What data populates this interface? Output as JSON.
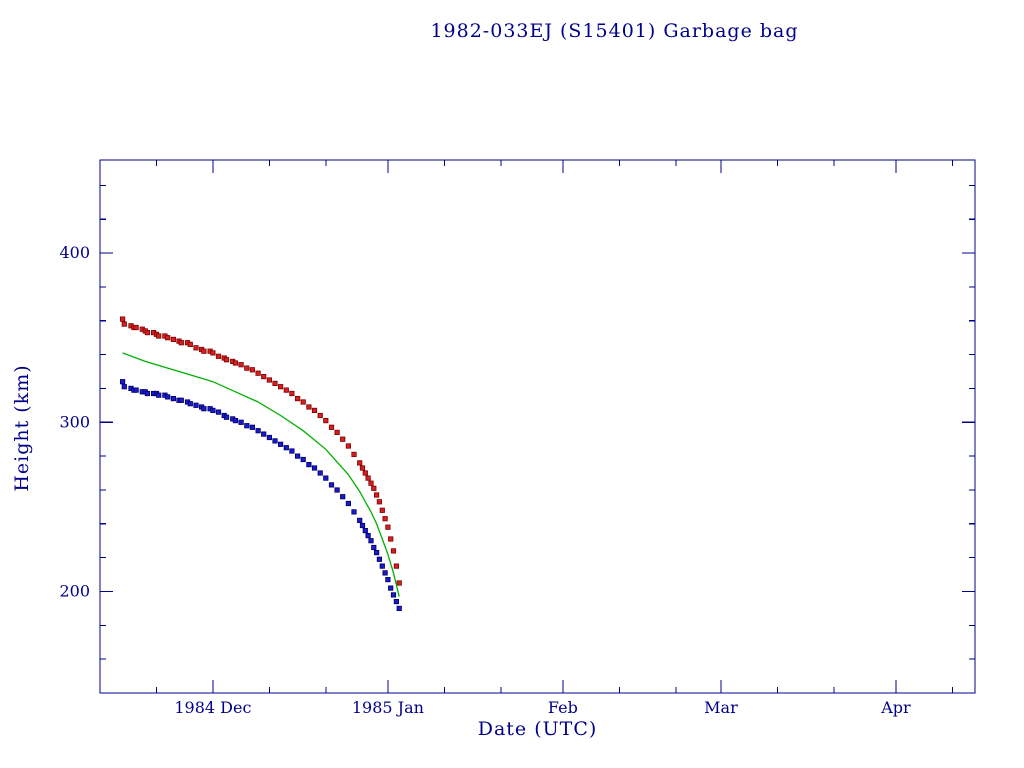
{
  "page": {
    "background_color": "#ffffff",
    "accent_color": "#00008b"
  },
  "chart_data": {
    "type": "scatter",
    "title": "1982-033EJ (S15401) Garbage bag",
    "xlabel": "Date (UTC)",
    "ylabel": "Height (km)",
    "x_unit": "days since 1984-11-15",
    "xlim": [
      -4,
      151
    ],
    "ylim": [
      140,
      455
    ],
    "grid": false,
    "legend": "none",
    "frame_color": "#00008b",
    "y_ticks": [
      {
        "value": 200,
        "label": "200"
      },
      {
        "value": 300,
        "label": "300"
      },
      {
        "value": 400,
        "label": "400"
      }
    ],
    "y_minor_values": [
      160,
      180,
      220,
      240,
      260,
      280,
      320,
      340,
      360,
      380,
      420,
      440
    ],
    "x_ticks": [
      {
        "day": 16,
        "label": "1984 Dec"
      },
      {
        "day": 47,
        "label": "1985 Jan"
      },
      {
        "day": 78,
        "label": "Feb"
      },
      {
        "day": 106,
        "label": "Mar"
      },
      {
        "day": 137,
        "label": "Apr"
      }
    ],
    "x_minor_days": [
      6,
      26,
      36,
      57,
      67,
      88,
      98,
      116,
      126,
      147
    ],
    "series": [
      {
        "name": "red-squares-upper",
        "type": "scatter",
        "marker": "square",
        "color": "#d42020",
        "edge": "#7f0000",
        "points": [
          [
            0,
            361
          ],
          [
            0.3,
            358
          ],
          [
            1.5,
            357
          ],
          [
            2,
            356
          ],
          [
            2.4,
            356
          ],
          [
            3.5,
            355
          ],
          [
            4,
            354
          ],
          [
            4.4,
            353
          ],
          [
            5.5,
            353
          ],
          [
            6,
            352
          ],
          [
            6.4,
            351
          ],
          [
            7.5,
            351
          ],
          [
            8,
            350
          ],
          [
            9,
            349
          ],
          [
            10,
            348
          ],
          [
            10.4,
            347
          ],
          [
            11.5,
            347
          ],
          [
            12,
            346
          ],
          [
            13,
            344
          ],
          [
            14,
            343
          ],
          [
            14.4,
            342
          ],
          [
            15.5,
            342
          ],
          [
            16,
            341
          ],
          [
            17,
            339
          ],
          [
            18,
            338
          ],
          [
            18.4,
            337
          ],
          [
            19.5,
            336
          ],
          [
            20,
            335
          ],
          [
            21,
            334
          ],
          [
            22,
            332
          ],
          [
            23,
            331
          ],
          [
            24,
            329
          ],
          [
            25,
            327
          ],
          [
            26,
            325
          ],
          [
            27,
            323
          ],
          [
            28,
            321
          ],
          [
            29,
            319
          ],
          [
            30,
            317
          ],
          [
            31,
            314
          ],
          [
            32,
            312
          ],
          [
            33,
            309
          ],
          [
            34,
            307
          ],
          [
            35,
            304
          ],
          [
            36,
            301
          ],
          [
            37,
            297
          ],
          [
            38,
            294
          ],
          [
            39,
            290
          ],
          [
            40,
            286
          ],
          [
            41,
            281
          ],
          [
            42,
            276
          ],
          [
            42.5,
            273
          ],
          [
            43,
            270
          ],
          [
            43.5,
            267
          ],
          [
            44,
            264
          ],
          [
            44.5,
            261
          ],
          [
            45,
            257
          ],
          [
            45.5,
            253
          ],
          [
            46,
            248
          ],
          [
            46.5,
            243
          ],
          [
            47,
            238
          ],
          [
            47.5,
            231
          ],
          [
            48,
            224
          ],
          [
            48.5,
            215
          ],
          [
            49,
            205
          ]
        ]
      },
      {
        "name": "blue-squares-lower",
        "type": "scatter",
        "marker": "square",
        "color": "#1a1acc",
        "edge": "#000066",
        "points": [
          [
            0,
            324
          ],
          [
            0.3,
            321
          ],
          [
            1.5,
            320
          ],
          [
            2,
            319
          ],
          [
            2.4,
            319
          ],
          [
            3.5,
            318
          ],
          [
            4,
            318
          ],
          [
            4.4,
            317
          ],
          [
            5.5,
            317
          ],
          [
            6,
            317
          ],
          [
            6.4,
            316
          ],
          [
            7.5,
            316
          ],
          [
            8,
            315
          ],
          [
            9,
            314
          ],
          [
            10,
            313
          ],
          [
            10.4,
            313
          ],
          [
            11.5,
            312
          ],
          [
            12,
            311
          ],
          [
            13,
            310
          ],
          [
            14,
            309
          ],
          [
            14.4,
            308
          ],
          [
            15.5,
            308
          ],
          [
            16,
            307
          ],
          [
            17,
            306
          ],
          [
            18,
            304
          ],
          [
            18.4,
            303
          ],
          [
            19.5,
            302
          ],
          [
            20,
            301
          ],
          [
            21,
            300
          ],
          [
            22,
            298
          ],
          [
            23,
            297
          ],
          [
            24,
            295
          ],
          [
            25,
            293
          ],
          [
            26,
            291
          ],
          [
            27,
            289
          ],
          [
            28,
            287
          ],
          [
            29,
            285
          ],
          [
            30,
            283
          ],
          [
            31,
            280
          ],
          [
            32,
            278
          ],
          [
            33,
            275
          ],
          [
            34,
            273
          ],
          [
            35,
            270
          ],
          [
            36,
            267
          ],
          [
            37,
            263
          ],
          [
            38,
            260
          ],
          [
            39,
            256
          ],
          [
            40,
            252
          ],
          [
            41,
            247
          ],
          [
            42,
            242
          ],
          [
            42.5,
            239
          ],
          [
            43,
            236
          ],
          [
            43.5,
            233
          ],
          [
            44,
            230
          ],
          [
            44.5,
            226
          ],
          [
            45,
            223
          ],
          [
            45.5,
            219
          ],
          [
            46,
            215
          ],
          [
            46.5,
            211
          ],
          [
            47,
            207
          ],
          [
            47.5,
            202
          ],
          [
            48,
            198
          ],
          [
            48.5,
            194
          ],
          [
            49,
            190
          ]
        ]
      },
      {
        "name": "green-line-middle",
        "type": "line",
        "color": "#00b000",
        "points": [
          [
            0,
            341
          ],
          [
            4,
            336
          ],
          [
            8,
            332
          ],
          [
            12,
            328
          ],
          [
            16,
            324
          ],
          [
            20,
            318
          ],
          [
            24,
            312
          ],
          [
            28,
            304
          ],
          [
            32,
            295
          ],
          [
            36,
            284
          ],
          [
            40,
            269
          ],
          [
            42,
            259
          ],
          [
            44,
            247
          ],
          [
            45,
            240
          ],
          [
            46,
            231
          ],
          [
            47,
            222
          ],
          [
            48,
            211
          ],
          [
            49,
            197
          ]
        ]
      }
    ]
  }
}
